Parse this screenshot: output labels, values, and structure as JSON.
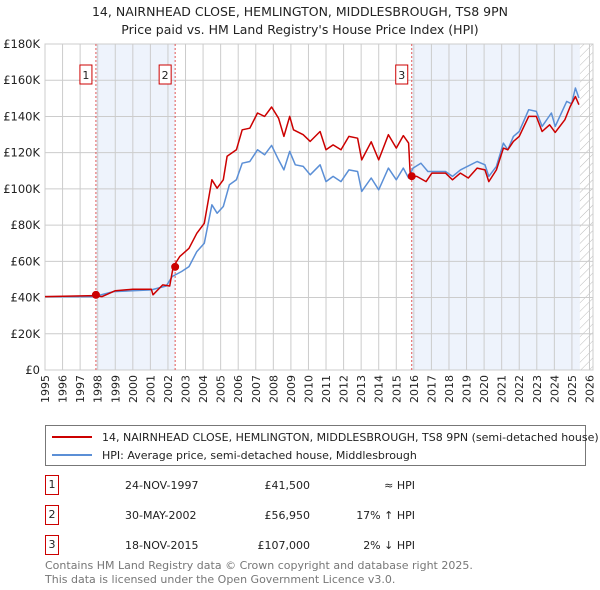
{
  "title_line1": "14, NAIRNHEAD CLOSE, HEMLINGTON, MIDDLESBROUGH, TS8 9PN",
  "title_line2": "Price paid vs. HM Land Registry's House Price Index (HPI)",
  "chart_data": {
    "type": "line",
    "title": "14, NAIRNHEAD CLOSE, HEMLINGTON, MIDDLESBROUGH, TS8 9PN — Price paid vs. HM Land Registry's House Price Index (HPI)",
    "xlim": [
      1995,
      2026.2
    ],
    "ylim": [
      0,
      180000
    ],
    "y_ticks": [
      0,
      20000,
      40000,
      60000,
      80000,
      100000,
      120000,
      140000,
      160000,
      180000
    ],
    "y_tick_labels": [
      "£0",
      "£20K",
      "£40K",
      "£60K",
      "£80K",
      "£100K",
      "£120K",
      "£140K",
      "£160K",
      "£180K"
    ],
    "x_ticks": [
      1995,
      1996,
      1997,
      1998,
      1999,
      2000,
      2001,
      2002,
      2003,
      2004,
      2005,
      2006,
      2007,
      2008,
      2009,
      2010,
      2011,
      2012,
      2013,
      2014,
      2015,
      2016,
      2017,
      2018,
      2019,
      2020,
      2021,
      2022,
      2023,
      2024,
      2025,
      2026
    ],
    "grid": true,
    "shaded_periods": [
      [
        1997.9,
        2002.41
      ],
      [
        2015.88,
        2025.45
      ]
    ],
    "forecast_hatch_from": 2025.45,
    "series": [
      {
        "name": "14, NAIRNHEAD CLOSE, HEMLINGTON, MIDDLESBROUGH, TS8 9PN (semi-detached house)",
        "color": "#cc0000",
        "x": [
          1995,
          1997.8,
          1998.25,
          1999,
          2000,
          2001.05,
          2001.15,
          2001.7,
          2002.1,
          2002.3,
          2002.67,
          2003.2,
          2003.64,
          2004.07,
          2004.5,
          2004.8,
          2005.15,
          2005.37,
          2005.9,
          2006.23,
          2006.66,
          2007.1,
          2007.5,
          2007.9,
          2008.3,
          2008.6,
          2008.93,
          2009.15,
          2009.7,
          2010.1,
          2010.66,
          2011,
          2011.4,
          2011.85,
          2012.3,
          2012.8,
          2013.03,
          2013.57,
          2014,
          2014.55,
          2015,
          2015.4,
          2015.7,
          2015.8,
          2016.17,
          2016.7,
          2017.03,
          2017.8,
          2018.2,
          2018.65,
          2019.1,
          2019.6,
          2020.05,
          2020.27,
          2020.7,
          2021.1,
          2021.35,
          2021.67,
          2022,
          2022.54,
          2022.97,
          2023.3,
          2023.73,
          2024.05,
          2024.6,
          2024.9,
          2025.2,
          2025.4
        ],
        "y": [
          40500,
          41100,
          40500,
          43800,
          44600,
          44600,
          41500,
          47000,
          46400,
          56950,
          62600,
          67200,
          75500,
          81000,
          105000,
          100400,
          105000,
          118000,
          121600,
          132600,
          133500,
          141900,
          140000,
          145200,
          139000,
          129000,
          140000,
          132600,
          129900,
          126200,
          131700,
          121600,
          124300,
          121600,
          129000,
          128000,
          116000,
          126000,
          116000,
          129900,
          122500,
          129400,
          125300,
          107000,
          106900,
          104000,
          108700,
          108700,
          105000,
          108700,
          106000,
          111500,
          110500,
          104000,
          110500,
          122500,
          121600,
          126200,
          129000,
          140000,
          140000,
          131700,
          135400,
          131200,
          138200,
          145500,
          151000,
          146500
        ]
      },
      {
        "name": "HPI: Average price, semi-detached house, Middlesbrough",
        "color": "#5b8fd6",
        "x": [
          1995,
          1997.8,
          1998.9,
          2001.05,
          2001.9,
          2002.24,
          2002.78,
          2003.2,
          2003.64,
          2004.07,
          2004.5,
          2004.8,
          2005.15,
          2005.5,
          2005.9,
          2006.23,
          2006.66,
          2007.1,
          2007.5,
          2007.9,
          2008.3,
          2008.6,
          2008.93,
          2009.25,
          2009.7,
          2010.1,
          2010.66,
          2011,
          2011.4,
          2011.85,
          2012.3,
          2012.8,
          2013.03,
          2013.57,
          2014,
          2014.55,
          2015,
          2015.4,
          2015.7,
          2015.95,
          2016.4,
          2016.8,
          2017.8,
          2018.2,
          2018.65,
          2019.6,
          2020.05,
          2020.27,
          2020.7,
          2021.1,
          2021.35,
          2021.67,
          2022,
          2022.54,
          2022.97,
          2023.3,
          2023.83,
          2024.05,
          2024.7,
          2024.98,
          2025.2,
          2025.4
        ],
        "y": [
          40500,
          40500,
          43300,
          44200,
          46400,
          51600,
          54400,
          57100,
          65400,
          70000,
          91200,
          86600,
          90300,
          102300,
          105000,
          114200,
          115100,
          121600,
          118800,
          124000,
          116000,
          110500,
          120700,
          113300,
          112400,
          107800,
          113300,
          104000,
          106900,
          104000,
          110500,
          109600,
          98600,
          106000,
          99500,
          111500,
          105000,
          111500,
          106000,
          111500,
          114200,
          109600,
          109600,
          106900,
          110500,
          115100,
          113300,
          106900,
          112400,
          125300,
          121600,
          129000,
          131700,
          143700,
          142800,
          134500,
          141900,
          134500,
          148300,
          147000,
          155700,
          150200
        ]
      }
    ],
    "sales": [
      {
        "label": "1",
        "x": 1997.9,
        "y": 41500
      },
      {
        "label": "2",
        "x": 2002.41,
        "y": 56950
      },
      {
        "label": "3",
        "x": 2015.88,
        "y": 107000
      }
    ]
  },
  "legend": {
    "property": "14, NAIRNHEAD CLOSE, HEMLINGTON, MIDDLESBROUGH, TS8 9PN (semi-detached house)",
    "hpi": "HPI: Average price, semi-detached house, Middlesbrough"
  },
  "transactions": [
    {
      "num": "1",
      "date": "24-NOV-1997",
      "price": "£41,500",
      "relation": "≈ HPI"
    },
    {
      "num": "2",
      "date": "30-MAY-2002",
      "price": "£56,950",
      "relation": "17% ↑ HPI"
    },
    {
      "num": "3",
      "date": "18-NOV-2015",
      "price": "£107,000",
      "relation": "2% ↓ HPI"
    }
  ],
  "footer": {
    "line1": "Contains HM Land Registry data © Crown copyright and database right 2025.",
    "line2": "This data is licensed under the Open Government Licence v3.0."
  }
}
